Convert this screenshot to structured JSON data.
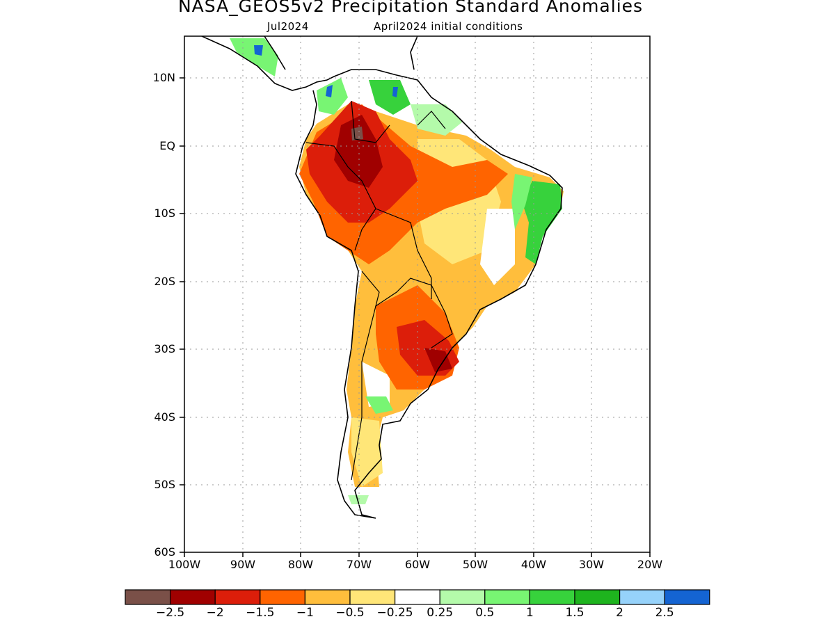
{
  "title": "NASA_GEOS5v2 Precipitation Standard Anomalies",
  "subtitle_month": "Jul2024",
  "subtitle_conditions": "April2024 initial conditions",
  "map": {
    "projection": "lat-lon",
    "lon_range": [
      "100W",
      "20W"
    ],
    "lat_range": [
      "60S",
      "15N"
    ],
    "y_axis_labels": [
      "10N",
      "EQ",
      "10S",
      "20S",
      "30S",
      "40S",
      "50S",
      "60S"
    ],
    "x_axis_labels": [
      "100W",
      "90W",
      "80W",
      "70W",
      "60W",
      "50W",
      "40W",
      "30W",
      "20W"
    ],
    "grid": "dotted",
    "region": "South America"
  },
  "colorbar": {
    "colors": [
      "#7a5048",
      "#a00000",
      "#dc1e0a",
      "#ff6400",
      "#ffbe3c",
      "#ffe678",
      "#ffffff",
      "#b4faaa",
      "#78f573",
      "#37d23c",
      "#1eb41e",
      "#96d2fa",
      "#1464d2"
    ],
    "labels": [
      "−2.5",
      "−2",
      "−1.5",
      "−1",
      "−0.5",
      "−0.25",
      "0.25",
      "0.5",
      "1",
      "1.5",
      "2",
      "2.5"
    ]
  }
}
